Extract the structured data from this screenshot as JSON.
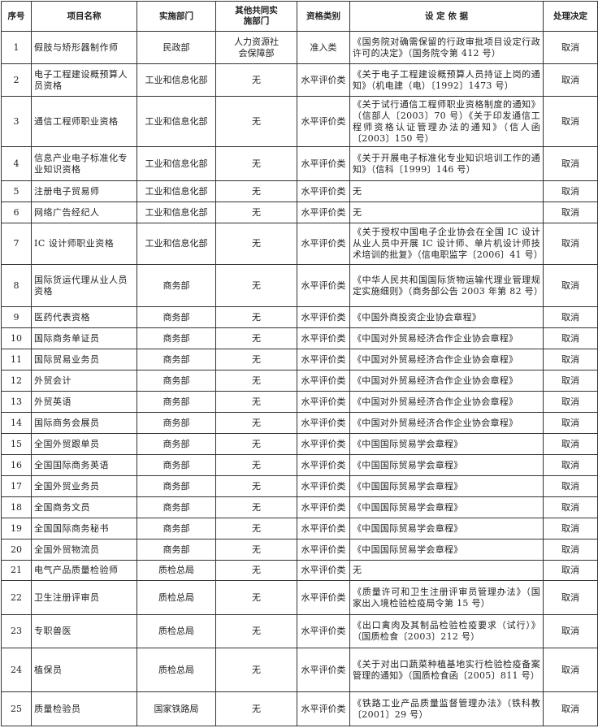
{
  "headers": [
    "序号",
    "项目名称",
    "实施部门",
    "其他共同实施部门",
    "资格类别",
    "设 定 依 据",
    "处理决定"
  ],
  "rows": [
    {
      "no": "1",
      "name": "假肢与矫形器制作师",
      "dept": "民政部",
      "other": "人力资源社会保障部",
      "type": "准入类",
      "basis": "《国务院对确需保留的行政审批项目设定行政许可的决定》（国务院令第 412 号）",
      "decision": "取消"
    },
    {
      "no": "2",
      "name": "电子工程建设概预算人员资格",
      "dept": "工业和信息化部",
      "other": "无",
      "type": "水平评价类",
      "basis": "《关于电子工程建设概预算人员持证上岗的通知》（机电建（电）〔1992〕1473 号）",
      "decision": "取消"
    },
    {
      "no": "3",
      "name": "通信工程师职业资格",
      "dept": "工业和信息化部",
      "other": "无",
      "type": "水平评价类",
      "basis": "《关于试行通信工程师职业资格制度的通知》（信部人〔2003〕70 号）《关于印发通信工程师资格认证管理办法的通知》（信人函〔2003〕150 号）",
      "decision": "取消"
    },
    {
      "no": "4",
      "name": "信息产业电子标准化专业知识资格",
      "dept": "工业和信息化部",
      "other": "无",
      "type": "水平评价类",
      "basis": "《关于开展电子标准化专业知识培训工作的通知》（信科〔1999〕146 号）",
      "decision": "取消"
    },
    {
      "no": "5",
      "name": "注册电子贸易师",
      "dept": "工业和信息化部",
      "other": "无",
      "type": "水平评价类",
      "basis": "无",
      "decision": "取消"
    },
    {
      "no": "6",
      "name": "网络广告经纪人",
      "dept": "工业和信息化部",
      "other": "无",
      "type": "水平评价类",
      "basis": "无",
      "decision": "取消"
    },
    {
      "no": "7",
      "name": "IC 设计师职业资格",
      "dept": "工业和信息化部",
      "other": "无",
      "type": "水平评价类",
      "basis": "《关于授权中国电子企业协会在全国 IC 设计从业人员中开展 IC 设计师、单片机设计师技术培训的批复》（信电职监字〔2006〕41 号）",
      "decision": "取消"
    },
    {
      "no": "8",
      "name": "国际货运代理从业人员资格",
      "dept": "商务部",
      "other": "无",
      "type": "水平评价类",
      "basis": "《中华人民共和国国际货物运输代理业管理规定实施细则》（商务部公告 2003 年第 82 号）",
      "decision": "取消"
    },
    {
      "no": "9",
      "name": "医药代表资格",
      "dept": "商务部",
      "other": "无",
      "type": "水平评价类",
      "basis": "《中国外商投资企业协会章程》",
      "decision": "取消"
    },
    {
      "no": "10",
      "name": "国际商务单证员",
      "dept": "商务部",
      "other": "无",
      "type": "水平评价类",
      "basis": "《中国对外贸易经济合作企业协会章程》",
      "decision": "取消"
    },
    {
      "no": "11",
      "name": "国际贸易业务员",
      "dept": "商务部",
      "other": "无",
      "type": "水平评价类",
      "basis": "《中国对外贸易经济合作企业协会章程》",
      "decision": "取消"
    },
    {
      "no": "12",
      "name": "外贸会计",
      "dept": "商务部",
      "other": "无",
      "type": "水平评价类",
      "basis": "《中国对外贸易经济合作企业协会章程》",
      "decision": "取消"
    },
    {
      "no": "13",
      "name": "外贸英语",
      "dept": "商务部",
      "other": "无",
      "type": "水平评价类",
      "basis": "《中国对外贸易经济合作企业协会章程》",
      "decision": "取消"
    },
    {
      "no": "14",
      "name": "国际商务会展员",
      "dept": "商务部",
      "other": "无",
      "type": "水平评价类",
      "basis": "《中国对外贸易经济合作企业协会章程》",
      "decision": "取消"
    },
    {
      "no": "15",
      "name": "全国外贸跟单员",
      "dept": "商务部",
      "other": "无",
      "type": "水平评价类",
      "basis": "《中国国际贸易学会章程》",
      "decision": "取消"
    },
    {
      "no": "16",
      "name": "全国国际商务英语",
      "dept": "商务部",
      "other": "无",
      "type": "水平评价类",
      "basis": "《中国国际贸易学会章程》",
      "decision": "取消"
    },
    {
      "no": "17",
      "name": "全国外贸业务员",
      "dept": "商务部",
      "other": "无",
      "type": "水平评价类",
      "basis": "《中国国际贸易学会章程》",
      "decision": "取消"
    },
    {
      "no": "18",
      "name": "全国商务文员",
      "dept": "商务部",
      "other": "无",
      "type": "水平评价类",
      "basis": "《中国国际贸易学会章程》",
      "decision": "取消"
    },
    {
      "no": "19",
      "name": "全国国际商务秘书",
      "dept": "商务部",
      "other": "无",
      "type": "水平评价类",
      "basis": "《中国国际贸易学会章程》",
      "decision": "取消"
    },
    {
      "no": "20",
      "name": "全国外贸物流员",
      "dept": "商务部",
      "other": "无",
      "type": "水平评价类",
      "basis": "《中国国际贸易学会章程》",
      "decision": "取消"
    },
    {
      "no": "21",
      "name": "电气产品质量检验师",
      "dept": "质检总局",
      "other": "无",
      "type": "水平评价类",
      "basis": "无",
      "decision": "取消"
    },
    {
      "no": "22",
      "name": "卫生注册评审员",
      "dept": "质检总局",
      "other": "无",
      "type": "水平评价类",
      "basis": "《质量许可和卫生注册评审员管理办法》（国家出入境检验检疫局令第 15 号）",
      "decision": "取消"
    },
    {
      "no": "23",
      "name": "专职兽医",
      "dept": "质检总局",
      "other": "无",
      "type": "水平评价类",
      "basis": "《出口禽肉及其制品检验检疫要求（试行）》（国质检食〔2003〕212 号）",
      "decision": "取消"
    },
    {
      "no": "24",
      "name": "植保员",
      "dept": "质检总局",
      "other": "无",
      "type": "水平评价类",
      "basis": "《关于对出口蔬菜种植基地实行检验检疫备案管理的通知》（国质检食函〔2005〕811 号）",
      "decision": "取消"
    },
    {
      "no": "25",
      "name": "质量检验员",
      "dept": "国家铁路局",
      "other": "无",
      "type": "水平评价类",
      "basis": "《铁路工业产品质量监督管理办法》（铁科教〔2001〕29 号）",
      "decision": "取消"
    }
  ]
}
